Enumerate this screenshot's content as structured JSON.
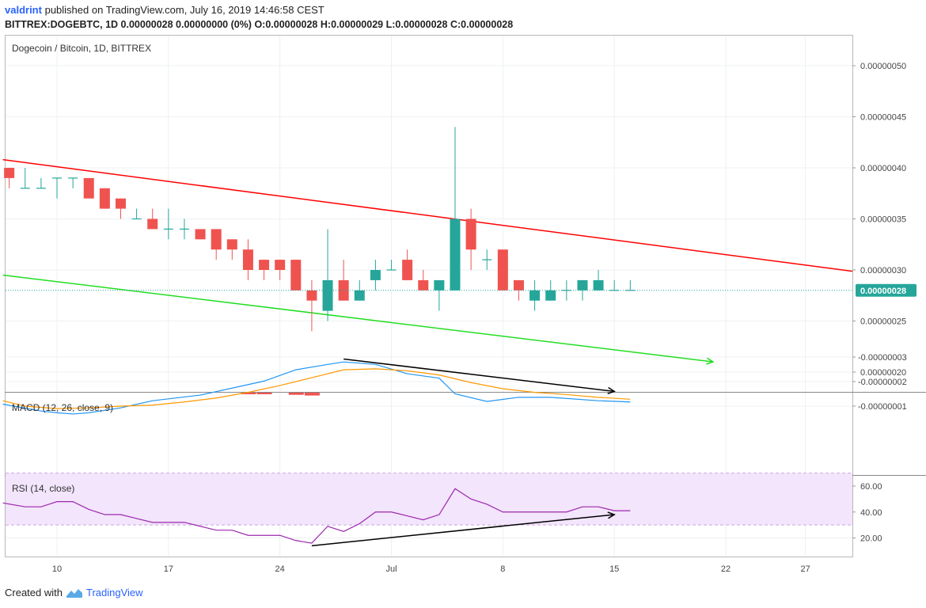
{
  "header": {
    "user": "valdrint",
    "published": "published on TradingView.com, July 16, 2019 14:46:58 CEST",
    "symbol": "BITTREX:DOGEBTC, 1D",
    "change": "0.00000028 0.00000000 (0%)",
    "o_label": "O:",
    "o_value": "0.00000028",
    "h_label": "H:",
    "h_value": "0.00000029",
    "l_label": "L:",
    "l_value": "0.00000028",
    "c_label": "C:",
    "c_value": "0.00000028"
  },
  "footer": {
    "created_with": "Created with",
    "brand": "TradingView"
  },
  "colors": {
    "up": "#26a69a",
    "down": "#ef5350",
    "resistance": "#ff0000",
    "support": "#22dd22",
    "macd": "#2196f3",
    "signal": "#ff9800",
    "rsi": "#9c27b0",
    "rsi_band": "#f3e5fb"
  },
  "chart_data": [
    {
      "type": "candlestick",
      "title": "Dogecoin / Bitcoin, 1D, BITTREX",
      "yticks": [
        "0.00000050",
        "0.00000045",
        "0.00000040",
        "0.00000035",
        "0.00000030",
        "0.00000025",
        "0.00000020"
      ],
      "ytick_values": [
        50,
        45,
        40,
        35,
        30,
        25,
        20
      ],
      "ylim": [
        17.9,
        55.2
      ],
      "price_unit": "1e-8 BTC",
      "last_price_label": "0.00000028",
      "last_price": 28,
      "xlim": [
        6.6,
        30.3
      ],
      "xticks": [
        {
          "label": "10",
          "day": 10
        },
        {
          "label": "17",
          "day": 17
        },
        {
          "label": "24",
          "day": 24
        },
        {
          "label": "Jul",
          "day": 31
        },
        {
          "label": "8",
          "day": 38
        },
        {
          "label": "15",
          "day": 45
        },
        {
          "label": "22",
          "day": 52
        },
        {
          "label": "27",
          "day": 57
        }
      ],
      "candles": [
        {
          "day": 7,
          "o": 40,
          "h": 40,
          "l": 38,
          "c": 39
        },
        {
          "day": 8,
          "o": 38,
          "h": 40,
          "l": 38,
          "c": 38
        },
        {
          "day": 9,
          "o": 38,
          "h": 39,
          "l": 38,
          "c": 38
        },
        {
          "day": 10,
          "o": 39,
          "h": 39,
          "l": 37,
          "c": 39
        },
        {
          "day": 11,
          "o": 39,
          "h": 39,
          "l": 38,
          "c": 39
        },
        {
          "day": 12,
          "o": 39,
          "h": 39,
          "l": 37,
          "c": 37
        },
        {
          "day": 13,
          "o": 38,
          "h": 38,
          "l": 36,
          "c": 36
        },
        {
          "day": 14,
          "o": 37,
          "h": 37,
          "l": 35,
          "c": 36
        },
        {
          "day": 15,
          "o": 35,
          "h": 36,
          "l": 35,
          "c": 35
        },
        {
          "day": 16,
          "o": 35,
          "h": 36,
          "l": 34,
          "c": 34
        },
        {
          "day": 17,
          "o": 34,
          "h": 36,
          "l": 33,
          "c": 34
        },
        {
          "day": 18,
          "o": 34,
          "h": 35,
          "l": 33,
          "c": 34
        },
        {
          "day": 19,
          "o": 34,
          "h": 34,
          "l": 33,
          "c": 33
        },
        {
          "day": 20,
          "o": 34,
          "h": 34,
          "l": 31,
          "c": 32
        },
        {
          "day": 21,
          "o": 33,
          "h": 33,
          "l": 31,
          "c": 32
        },
        {
          "day": 22,
          "o": 32,
          "h": 33,
          "l": 29,
          "c": 30
        },
        {
          "day": 23,
          "o": 31,
          "h": 31,
          "l": 29,
          "c": 30
        },
        {
          "day": 24,
          "o": 31,
          "h": 31,
          "l": 29,
          "c": 30
        },
        {
          "day": 25,
          "o": 31,
          "h": 31,
          "l": 28,
          "c": 28
        },
        {
          "day": 26,
          "o": 28,
          "h": 29,
          "l": 24,
          "c": 27
        },
        {
          "day": 27,
          "o": 26,
          "h": 34,
          "l": 25,
          "c": 29
        },
        {
          "day": 28,
          "o": 29,
          "h": 31,
          "l": 27,
          "c": 27
        },
        {
          "day": 29,
          "o": 27,
          "h": 29,
          "l": 27,
          "c": 28
        },
        {
          "day": 30,
          "o": 29,
          "h": 31,
          "l": 28,
          "c": 30
        },
        {
          "day": 31,
          "o": 30,
          "h": 31,
          "l": 30,
          "c": 30
        },
        {
          "day": 32,
          "o": 31,
          "h": 32,
          "l": 29,
          "c": 29
        },
        {
          "day": 33,
          "o": 29,
          "h": 30,
          "l": 28,
          "c": 28
        },
        {
          "day": 34,
          "o": 28,
          "h": 29,
          "l": 26,
          "c": 29
        },
        {
          "day": 35,
          "o": 28,
          "h": 44,
          "l": 28,
          "c": 35
        },
        {
          "day": 36,
          "o": 35,
          "h": 36,
          "l": 30,
          "c": 32
        },
        {
          "day": 37,
          "o": 31,
          "h": 32,
          "l": 30,
          "c": 31
        },
        {
          "day": 38,
          "o": 32,
          "h": 32,
          "l": 28,
          "c": 28
        },
        {
          "day": 39,
          "o": 29,
          "h": 29,
          "l": 27,
          "c": 28
        },
        {
          "day": 40,
          "o": 27,
          "h": 29,
          "l": 26,
          "c": 28
        },
        {
          "day": 41,
          "o": 27,
          "h": 29,
          "l": 27,
          "c": 28
        },
        {
          "day": 42,
          "o": 28,
          "h": 29,
          "l": 27,
          "c": 28
        },
        {
          "day": 43,
          "o": 28,
          "h": 29,
          "l": 27,
          "c": 29
        },
        {
          "day": 44,
          "o": 28,
          "h": 30,
          "l": 28,
          "c": 29
        },
        {
          "day": 45,
          "o": 28,
          "h": 29,
          "l": 28,
          "c": 28
        },
        {
          "day": 46,
          "o": 28,
          "h": 29,
          "l": 28,
          "c": 28
        }
      ],
      "trendlines": [
        {
          "name": "resistance",
          "color": "#ff0000",
          "from": {
            "day": 6.6,
            "price": 40.8
          },
          "to": {
            "day": 60.3,
            "price": 29.8
          }
        },
        {
          "name": "support",
          "color": "#22dd22",
          "from": {
            "day": 6.6,
            "price": 29.5
          },
          "to": {
            "day": 51.2,
            "price": 21.0
          },
          "arrow": true
        }
      ]
    },
    {
      "type": "line",
      "title": "MACD (12, 26, close, 9)",
      "yticks": [
        "-0.00000001",
        "-0.00000002",
        "-0.00000003"
      ],
      "ytick_values": [
        -1,
        -2,
        -3
      ],
      "ylim": [
        -3.82,
        -0.39
      ],
      "series": [
        {
          "color": "#2196f3",
          "x": [
            6.6,
            9,
            10,
            11,
            12,
            14,
            16,
            19,
            23,
            25,
            27,
            28,
            30,
            32,
            34,
            35,
            37,
            39,
            41,
            44,
            46
          ],
          "values": [
            -1.08,
            -0.8,
            -0.73,
            -0.68,
            -0.73,
            -0.93,
            -1.22,
            -1.45,
            -2.02,
            -2.48,
            -2.7,
            -2.8,
            -2.7,
            -2.32,
            -2.14,
            -1.5,
            -1.19,
            -1.36,
            -1.36,
            -1.22,
            -1.17
          ]
        },
        {
          "color": "#ff9800",
          "x": [
            6.6,
            8,
            10,
            12,
            14,
            16,
            18,
            20,
            22,
            24,
            26,
            28,
            30,
            32,
            34,
            36,
            38,
            40,
            42,
            44,
            46
          ],
          "values": [
            -1.22,
            -1.0,
            -0.9,
            -0.93,
            -1.0,
            -1.04,
            -1.17,
            -1.33,
            -1.56,
            -1.84,
            -2.16,
            -2.48,
            -2.52,
            -2.44,
            -2.27,
            -1.96,
            -1.71,
            -1.56,
            -1.47,
            -1.36,
            -1.28
          ]
        }
      ],
      "histogram": [
        {
          "day": 22,
          "value": -0.05
        },
        {
          "day": 23,
          "value": -0.06
        },
        {
          "day": 25,
          "value": -0.09
        },
        {
          "day": 26,
          "value": -0.12
        }
      ],
      "trendline": {
        "from": {
          "day": 28,
          "value": -2.92
        },
        "to": {
          "day": 45,
          "value": -1.6
        },
        "arrow": true
      }
    },
    {
      "type": "line",
      "title": "RSI (14, close)",
      "yticks": [
        "60.00",
        "40.00",
        "20.00"
      ],
      "ytick_values": [
        60,
        40,
        20
      ],
      "ylim": [
        5.2,
        72.7
      ],
      "band": [
        30,
        70
      ],
      "series": [
        {
          "color": "#9c27b0",
          "x": [
            6.6,
            8,
            9,
            10,
            11,
            12,
            13,
            14,
            15,
            16,
            17,
            18,
            19,
            20,
            21,
            22,
            23,
            24,
            25,
            26,
            27,
            28,
            29,
            30,
            31,
            32,
            33,
            34,
            35,
            36,
            37,
            38,
            39,
            40,
            41,
            42,
            43,
            44,
            45,
            46
          ],
          "values": [
            47,
            44,
            44,
            48,
            48,
            42,
            38,
            38,
            35,
            32,
            32,
            32,
            29,
            26,
            26,
            22,
            22,
            22,
            18,
            16,
            29,
            25,
            31,
            40,
            40,
            37,
            34,
            38,
            58,
            50,
            46,
            40,
            40,
            40,
            40,
            40,
            44,
            44,
            41,
            41
          ]
        }
      ],
      "trendline": {
        "from": {
          "day": 26,
          "value": 14
        },
        "to": {
          "day": 45,
          "value": 38
        },
        "arrow": true
      }
    }
  ]
}
